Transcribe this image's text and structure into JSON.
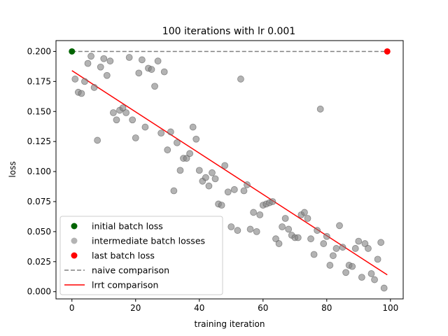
{
  "chart_data": {
    "type": "scatter",
    "title": "100 iterations with lr 0.001",
    "xlabel": "training iteration",
    "ylabel": "loss",
    "xlim": [
      -5,
      104
    ],
    "ylim": [
      -0.006,
      0.209
    ],
    "xticks": [
      0,
      20,
      40,
      60,
      80,
      100
    ],
    "xtick_labels": [
      "0",
      "20",
      "40",
      "60",
      "80",
      "100"
    ],
    "yticks": [
      0.0,
      0.025,
      0.05,
      0.075,
      0.1,
      0.125,
      0.15,
      0.175,
      0.2
    ],
    "ytick_labels": [
      "0.000",
      "0.025",
      "0.050",
      "0.075",
      "0.100",
      "0.125",
      "0.150",
      "0.175",
      "0.200"
    ],
    "legend_position": "lower-left",
    "colors": {
      "initial": "#006400",
      "intermediate": "#808080",
      "last": "#ff0000",
      "naive": "#808080",
      "lrrt": "#ff0000"
    },
    "series": [
      {
        "name": "initial batch loss",
        "kind": "point",
        "x": [
          0
        ],
        "y": [
          0.2
        ]
      },
      {
        "name": "intermediate batch losses",
        "kind": "point",
        "x": [
          1,
          2,
          3,
          4,
          5,
          6,
          7,
          8,
          9,
          10,
          11,
          12,
          13,
          14,
          15,
          16,
          17,
          18,
          19,
          20,
          21,
          22,
          23,
          24,
          25,
          26,
          27,
          28,
          29,
          30,
          31,
          32,
          33,
          34,
          35,
          36,
          37,
          38,
          39,
          40,
          41,
          42,
          43,
          44,
          45,
          46,
          47,
          48,
          49,
          50,
          51,
          52,
          53,
          54,
          55,
          56,
          57,
          58,
          59,
          60,
          61,
          62,
          63,
          64,
          65,
          66,
          67,
          68,
          69,
          70,
          71,
          72,
          73,
          74,
          75,
          76,
          77,
          78,
          79,
          80,
          81,
          82,
          83,
          84,
          85,
          86,
          87,
          88,
          89,
          90,
          91,
          92,
          93,
          94,
          95,
          96,
          97,
          98
        ],
        "y": [
          0.177,
          0.166,
          0.165,
          0.175,
          0.19,
          0.196,
          0.17,
          0.126,
          0.187,
          0.194,
          0.18,
          0.192,
          0.149,
          0.143,
          0.151,
          0.153,
          0.149,
          0.195,
          0.143,
          0.128,
          0.182,
          0.193,
          0.137,
          0.186,
          0.185,
          0.171,
          0.192,
          0.132,
          0.183,
          0.118,
          0.133,
          0.084,
          0.124,
          0.101,
          0.111,
          0.111,
          0.115,
          0.137,
          0.127,
          0.101,
          0.092,
          0.095,
          0.088,
          0.099,
          0.094,
          0.073,
          0.072,
          0.105,
          0.083,
          0.054,
          0.085,
          0.051,
          0.177,
          0.084,
          0.089,
          0.052,
          0.066,
          0.05,
          0.064,
          0.072,
          0.073,
          0.074,
          0.075,
          0.044,
          0.04,
          0.054,
          0.061,
          0.052,
          0.047,
          0.045,
          0.045,
          0.064,
          0.066,
          0.061,
          0.044,
          0.031,
          0.051,
          0.152,
          0.04,
          0.046,
          0.022,
          0.03,
          0.036,
          0.055,
          0.037,
          0.016,
          0.022,
          0.021,
          0.036,
          0.042,
          0.012,
          0.04,
          0.036,
          0.015,
          0.01,
          0.027,
          0.041,
          0.003
        ]
      },
      {
        "name": "last batch loss",
        "kind": "point",
        "x": [
          99
        ],
        "y": [
          0.2
        ]
      },
      {
        "name": "naive comparison",
        "kind": "dashed-line",
        "x": [
          0,
          99
        ],
        "y": [
          0.2,
          0.2
        ]
      },
      {
        "name": "lrrt comparison",
        "kind": "line",
        "x": [
          0,
          99
        ],
        "y": [
          0.184,
          0.014
        ]
      }
    ]
  }
}
